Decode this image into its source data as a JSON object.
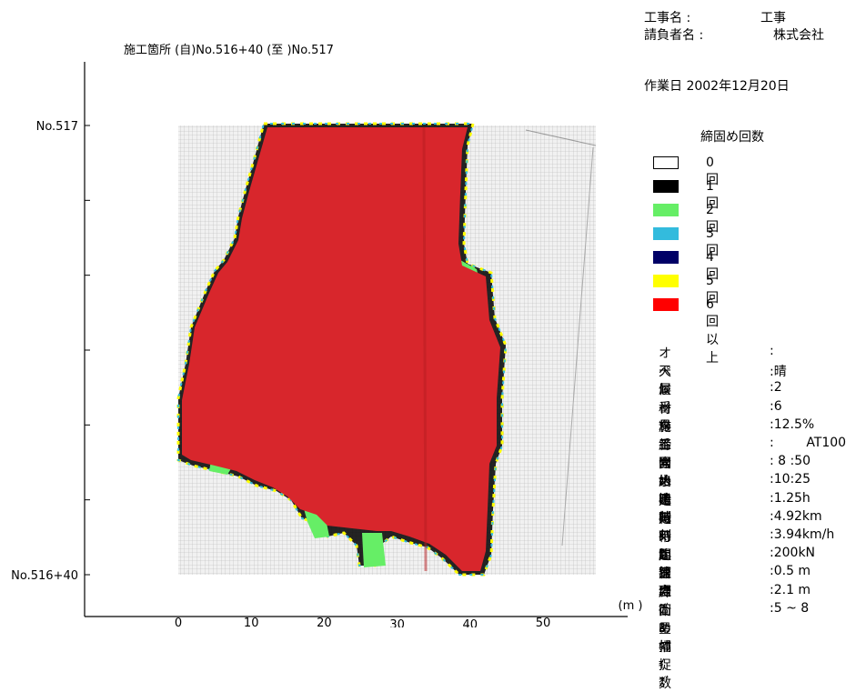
{
  "header": {
    "project_label": "工事名 :",
    "project_value": "工事",
    "contractor_label": "請負者名 :",
    "contractor_value": "株式会社",
    "work_date": "作業日 2002年12月20日"
  },
  "chart_data": {
    "type": "heatmap",
    "title": "施工箇所 (自)No.516+40 (至 )No.517",
    "xlabel": "(m )",
    "x_ticks": [
      "0",
      "10",
      "20",
      "30",
      "40",
      "50"
    ],
    "xlim": [
      0,
      58
    ],
    "y_ticks_labeled": [
      "No.517",
      "No.516+40"
    ],
    "y_tick_count": 7,
    "grid": true,
    "legend_title": "締固め回数",
    "legend_position": "right",
    "legend": [
      {
        "label": "0回",
        "color": "#ffffff"
      },
      {
        "label": "1回",
        "color": "#000000"
      },
      {
        "label": "2回",
        "color": "#66ee66"
      },
      {
        "label": "3回",
        "color": "#33bbdd"
      },
      {
        "label": "4回",
        "color": "#000066"
      },
      {
        "label": "5回",
        "color": "#ffff00"
      },
      {
        "label": "6回以上",
        "color": "#ff0000"
      }
    ],
    "compacted_area_color": "#d8262c"
  },
  "info": [
    {
      "label": "オペレータ",
      "value": ":"
    },
    {
      "label": "天候",
      "value": ":晴"
    },
    {
      "label": "層番号",
      "value": ":2"
    },
    {
      "label": "材料番号",
      "value": ":6"
    },
    {
      "label": "施工含水比",
      "value": ":12.5%"
    },
    {
      "label": "締固め機械",
      "value": ":        AT100"
    },
    {
      "label": "開始時刻",
      "value": ": 8 :50"
    },
    {
      "label": "終了時刻",
      "value": ":10:25"
    },
    {
      "label": "走行時間",
      "value": ":1.25h"
    },
    {
      "label": "走行距離",
      "value": ":4.92km"
    },
    {
      "label": "平均速度",
      "value": ":3.94km/h"
    },
    {
      "label": "起振力",
      "value": ":200kN"
    },
    {
      "label": "管理ﾌﾞﾛｯｸｻｲｽﾞ",
      "value": ":0.5 m"
    },
    {
      "label": "締固め幅",
      "value": ":2.1 m"
    },
    {
      "label": "衛星捕捉数",
      "value": ":5 ~ 8"
    }
  ]
}
